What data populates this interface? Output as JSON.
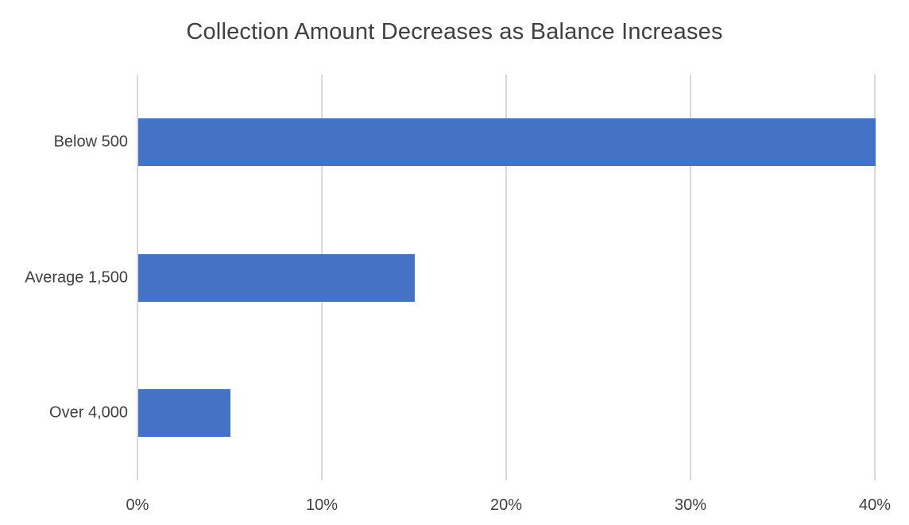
{
  "chart_data": {
    "type": "bar",
    "orientation": "horizontal",
    "title": "Collection Amount Decreases as Balance Increases",
    "categories": [
      "Below 500",
      "Average 1,500",
      "Over 4,000"
    ],
    "values": [
      40,
      15,
      5
    ],
    "value_unit": "%",
    "xlabel": "",
    "ylabel": "",
    "xlim": [
      0,
      40
    ],
    "x_ticks": [
      0,
      10,
      20,
      30,
      40
    ],
    "x_tick_labels": [
      "0%",
      "10%",
      "20%",
      "30%",
      "40%"
    ],
    "grid": "vertical-only",
    "legend": "none",
    "colors": {
      "bar": "#4472C4",
      "gridline": "#D9D9D9",
      "text": "#404040",
      "background": "#FFFFFF"
    }
  }
}
